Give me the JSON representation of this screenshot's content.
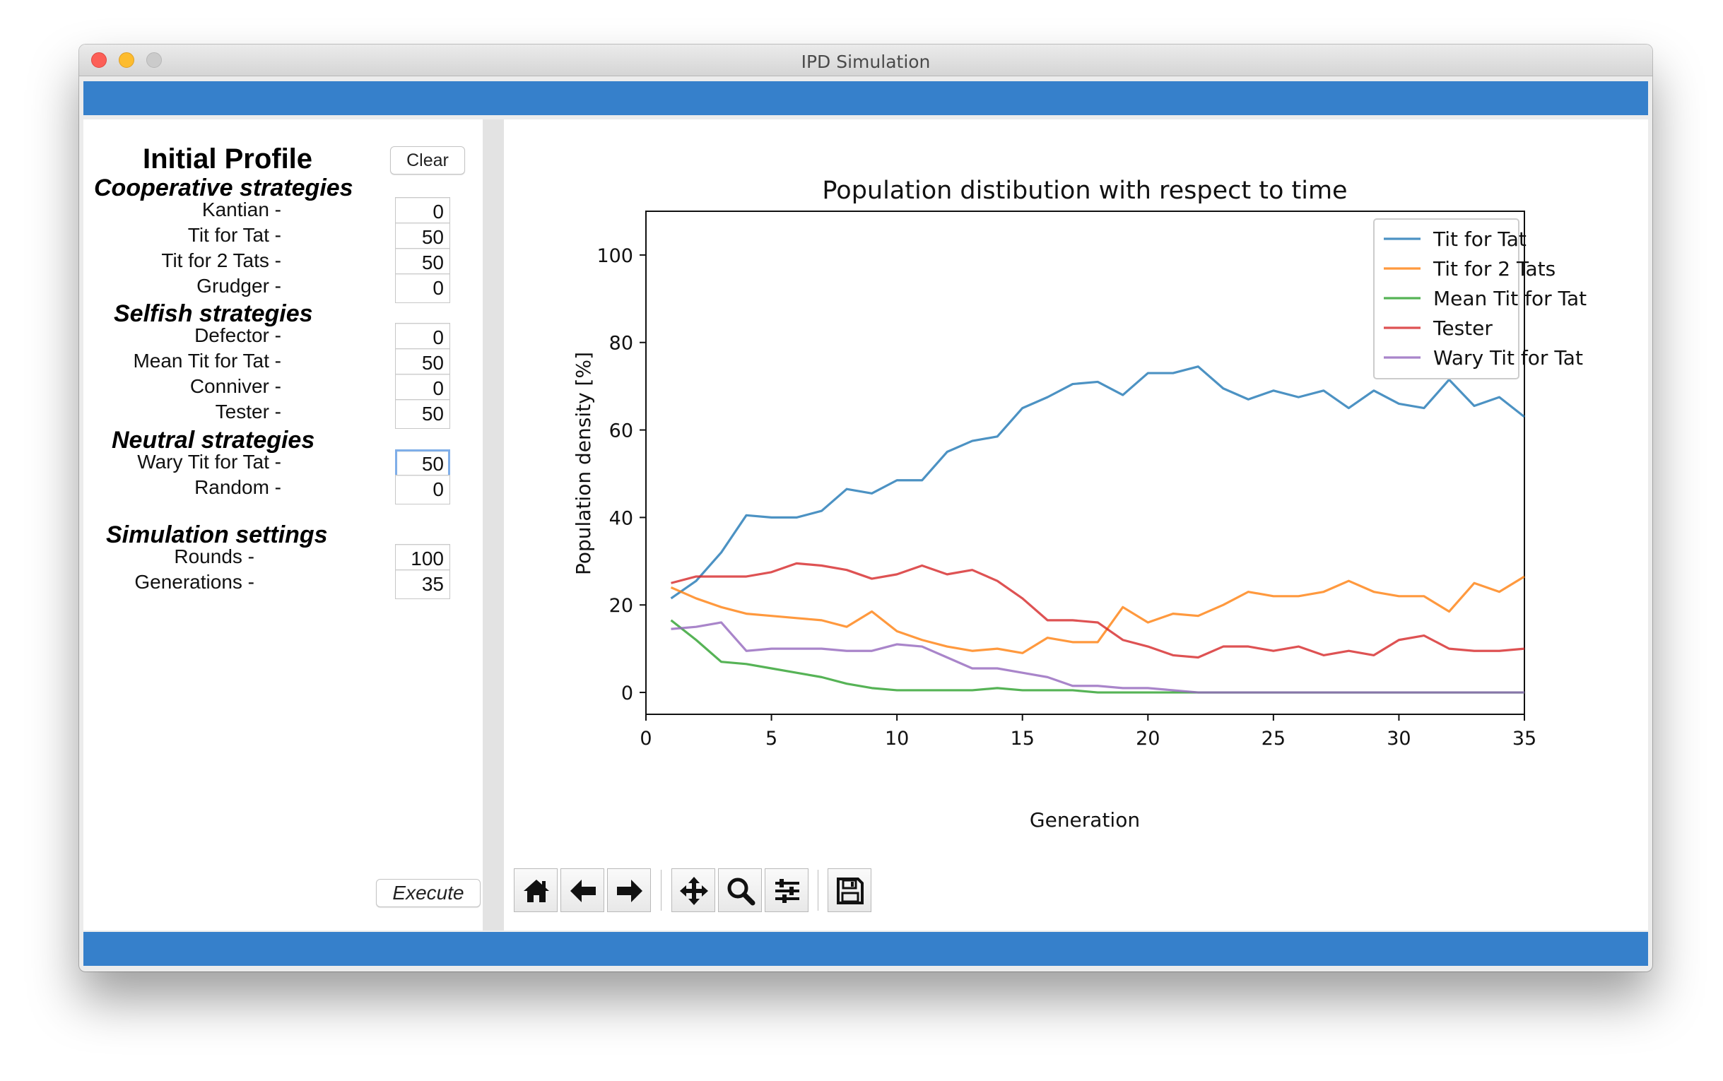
{
  "window": {
    "title": "IPD Simulation"
  },
  "left_panel": {
    "title": "Initial Profile",
    "clear_label": "Clear",
    "execute_label": "Execute",
    "sections": [
      {
        "title": "Cooperative strategies",
        "rows": [
          {
            "label": "Kantian -",
            "value": "0"
          },
          {
            "label": "Tit for Tat -",
            "value": "50"
          },
          {
            "label": "Tit for 2 Tats -",
            "value": "50"
          },
          {
            "label": "Grudger -",
            "value": "0"
          }
        ]
      },
      {
        "title": "Selfish strategies",
        "rows": [
          {
            "label": "Defector -",
            "value": "0"
          },
          {
            "label": "Mean Tit for Tat -",
            "value": "50"
          },
          {
            "label": "Conniver -",
            "value": "0"
          },
          {
            "label": "Tester -",
            "value": "50"
          }
        ]
      },
      {
        "title": "Neutral strategies",
        "rows": [
          {
            "label": "Wary Tit for Tat -",
            "value": "50"
          },
          {
            "label": "Random -",
            "value": "0"
          }
        ]
      }
    ],
    "simulation": {
      "title": "Simulation settings",
      "rows": [
        {
          "label": "Rounds -",
          "value": "100"
        },
        {
          "label": "Generations -",
          "value": "35"
        }
      ]
    }
  },
  "toolbar": {
    "icons": [
      "home-icon",
      "back-arrow-icon",
      "forward-arrow-icon",
      "pan-move-icon",
      "zoom-magnifier-icon",
      "configure-subplots-icon",
      "save-floppy-icon"
    ]
  },
  "chart_data": {
    "type": "line",
    "title": "Population distibution with respect to time",
    "xlabel": "Generation",
    "ylabel": "Population density [%]",
    "xlim": [
      0,
      35
    ],
    "ylim": [
      -5,
      110
    ],
    "xticks": [
      0,
      5,
      10,
      15,
      20,
      25,
      30,
      35
    ],
    "yticks": [
      0,
      20,
      40,
      60,
      80,
      100
    ],
    "grid": false,
    "legend_position": "top-right",
    "x": [
      1,
      2,
      3,
      4,
      5,
      6,
      7,
      8,
      9,
      10,
      11,
      12,
      13,
      14,
      15,
      16,
      17,
      18,
      19,
      20,
      21,
      22,
      23,
      24,
      25,
      26,
      27,
      28,
      29,
      30,
      31,
      32,
      33,
      34,
      35
    ],
    "series": [
      {
        "name": "Tit for Tat",
        "color": "#1f77b4",
        "values": [
          21.5,
          25.5,
          32,
          40.5,
          40,
          40,
          41.5,
          46.5,
          45.5,
          48.5,
          48.5,
          55,
          57.5,
          58.5,
          65,
          67.5,
          70.5,
          71,
          68,
          73,
          73,
          74.5,
          69.5,
          67,
          69,
          67.5,
          69,
          65,
          69,
          66,
          65,
          71.5,
          65.5,
          67.5,
          63
        ]
      },
      {
        "name": "Tit for 2 Tats",
        "color": "#ff7f0e",
        "values": [
          24,
          21.5,
          19.5,
          18,
          17.5,
          17,
          16.5,
          15,
          18.5,
          14,
          12,
          10.5,
          9.5,
          10,
          9,
          12.5,
          11.5,
          11.5,
          19.5,
          16,
          18,
          17.5,
          20,
          23,
          22,
          22,
          23,
          25.5,
          23,
          22,
          22,
          18.5,
          25,
          23,
          26.5
        ]
      },
      {
        "name": "Mean Tit for Tat",
        "color": "#2ca02c",
        "values": [
          16.5,
          12,
          7,
          6.5,
          5.5,
          4.5,
          3.5,
          2,
          1,
          0.5,
          0.5,
          0.5,
          0.5,
          1,
          0.5,
          0.5,
          0.5,
          0,
          0,
          0,
          0,
          0,
          0,
          0,
          0,
          0,
          0,
          0,
          0,
          0,
          0,
          0,
          0,
          0,
          0
        ]
      },
      {
        "name": "Tester",
        "color": "#d62728",
        "values": [
          25,
          26.5,
          26.5,
          26.5,
          27.5,
          29.5,
          29,
          28,
          26,
          27,
          29,
          27,
          28,
          25.5,
          21.5,
          16.5,
          16.5,
          16,
          12,
          10.5,
          8.5,
          8,
          10.5,
          10.5,
          9.5,
          10.5,
          8.5,
          9.5,
          8.5,
          12,
          13,
          10,
          9.5,
          9.5,
          10
        ]
      },
      {
        "name": "Wary Tit for Tat",
        "color": "#9467bd",
        "values": [
          14.5,
          15,
          16,
          9.5,
          10,
          10,
          10,
          9.5,
          9.5,
          11,
          10.5,
          8,
          5.5,
          5.5,
          4.5,
          3.5,
          1.5,
          1.5,
          1,
          1,
          0.5,
          0,
          0,
          0,
          0,
          0,
          0,
          0,
          0,
          0,
          0,
          0,
          0,
          0,
          0
        ]
      }
    ]
  }
}
